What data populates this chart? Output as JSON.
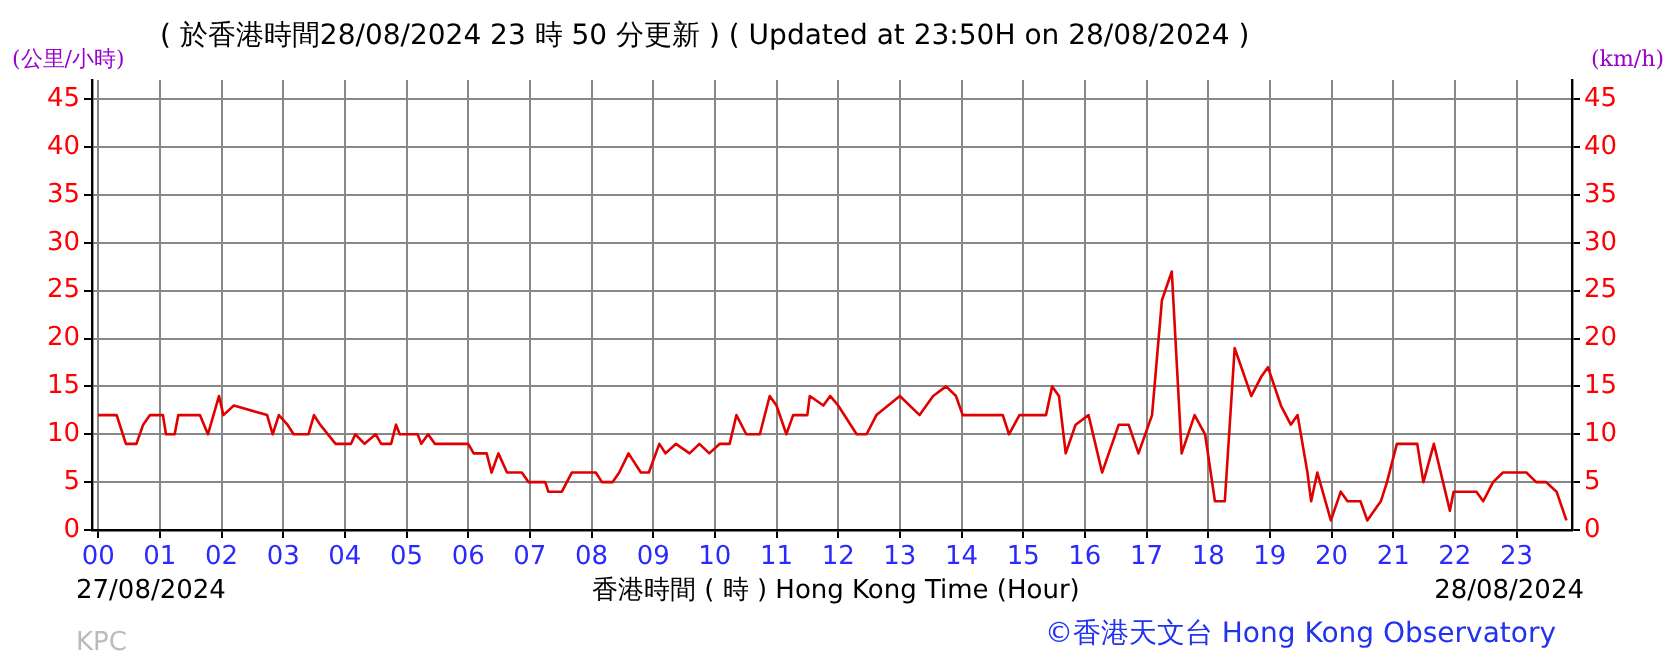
{
  "chart_data": {
    "type": "line",
    "title": "( 於香港時間28/08/2024 23 時 50 分更新 ) ( Updated at 23:50H on 28/08/2024 )",
    "xlabel": "香港時間 ( 時 )  Hong Kong Time (Hour)",
    "ylabel": "(公里/小時)",
    "y2label": "(km/h)",
    "annotations": [
      "27/08/2024",
      "28/08/2024",
      "KPC",
      "©香港天文台 Hong Kong Observatory"
    ],
    "x": [
      0,
      0.3,
      0.4,
      0.45,
      0.62,
      0.73,
      0.84,
      1.05,
      1.1,
      1.24,
      1.3,
      1.65,
      1.78,
      1.87,
      1.96,
      2.03,
      2.2,
      2.74,
      2.83,
      2.93,
      3.07,
      3.17,
      3.41,
      3.5,
      3.6,
      3.85,
      4.1,
      4.17,
      4.32,
      4.5,
      4.59,
      4.75,
      4.83,
      4.89,
      5.18,
      5.24,
      5.35,
      5.46,
      6.0,
      6.09,
      6.3,
      6.38,
      6.49,
      6.63,
      6.87,
      6.98,
      7.25,
      7.3,
      7.52,
      7.68,
      8.07,
      8.17,
      8.34,
      8.45,
      8.6,
      8.8,
      8.93,
      9.1,
      9.2,
      9.37,
      9.59,
      9.75,
      9.91,
      10.08,
      10.24,
      10.35,
      10.51,
      10.73,
      10.89,
      11.0,
      11.16,
      11.27,
      11.5,
      11.54,
      11.76,
      11.87,
      12.0,
      12.3,
      12.46,
      12.62,
      13.0,
      13.32,
      13.54,
      13.75,
      13.91,
      14.02,
      14.67,
      14.77,
      14.94,
      15.37,
      15.47,
      15.58,
      15.69,
      15.85,
      16.06,
      16.28,
      16.55,
      16.71,
      16.87,
      17.09,
      17.25,
      17.41,
      17.57,
      17.78,
      17.95,
      18.11,
      18.27,
      18.43,
      18.7,
      18.86,
      18.97,
      19.18,
      19.34,
      19.45,
      19.61,
      19.67,
      19.77,
      19.99,
      20.15,
      20.26,
      20.47,
      20.58,
      20.8,
      20.9,
      21.06,
      21.39,
      21.49,
      21.66,
      21.92,
      21.98,
      22.35,
      22.46,
      22.62,
      22.78,
      23.16,
      23.32,
      23.48,
      23.65,
      23.81
    ],
    "series": [
      {
        "color": "#e00000",
        "values": [
          12,
          12,
          10,
          9,
          9,
          11,
          12,
          12,
          10,
          10,
          12,
          12,
          10,
          12,
          14,
          12,
          13,
          12,
          10,
          12,
          11,
          10,
          10,
          12,
          11,
          9,
          9,
          10,
          9,
          10,
          9,
          9,
          11,
          10,
          10,
          9,
          10,
          9,
          9,
          8,
          8,
          6,
          8,
          6,
          6,
          5,
          5,
          4,
          4,
          6,
          6,
          5,
          5,
          6,
          8,
          6,
          6,
          9,
          8,
          9,
          8,
          9,
          8,
          9,
          9,
          12,
          10,
          10,
          14,
          13,
          10,
          12,
          12,
          14,
          13,
          14,
          13,
          10,
          10,
          12,
          14,
          12,
          14,
          15,
          14,
          12,
          12,
          10,
          12,
          12,
          15,
          14,
          8,
          11,
          12,
          6,
          11,
          11,
          8,
          12,
          24,
          27,
          8,
          12,
          10,
          3,
          3,
          19,
          14,
          16,
          17,
          13,
          11,
          12,
          6,
          3,
          6,
          1,
          4,
          3,
          3,
          1,
          3,
          5,
          9,
          9,
          5,
          9,
          2,
          4,
          4,
          3,
          5,
          6,
          6,
          5,
          5,
          4,
          1
        ]
      }
    ],
    "xlim": [
      -0.1,
      23.9
    ],
    "xticks": [
      {
        "value": 0,
        "label": "00"
      },
      {
        "value": 1,
        "label": "01"
      },
      {
        "value": 2,
        "label": "02"
      },
      {
        "value": 3,
        "label": "03"
      },
      {
        "value": 4,
        "label": "04"
      },
      {
        "value": 5,
        "label": "05"
      },
      {
        "value": 6,
        "label": "06"
      },
      {
        "value": 7,
        "label": "07"
      },
      {
        "value": 8,
        "label": "08"
      },
      {
        "value": 9,
        "label": "09"
      },
      {
        "value": 10,
        "label": "10"
      },
      {
        "value": 11,
        "label": "11"
      },
      {
        "value": 12,
        "label": "12"
      },
      {
        "value": 13,
        "label": "13"
      },
      {
        "value": 14,
        "label": "14"
      },
      {
        "value": 15,
        "label": "15"
      },
      {
        "value": 16,
        "label": "16"
      },
      {
        "value": 17,
        "label": "17"
      },
      {
        "value": 18,
        "label": "18"
      },
      {
        "value": 19,
        "label": "19"
      },
      {
        "value": 20,
        "label": "20"
      },
      {
        "value": 21,
        "label": "21"
      },
      {
        "value": 22,
        "label": "22"
      },
      {
        "value": 23,
        "label": "23"
      }
    ],
    "ylim": [
      0,
      47
    ],
    "yticks": [
      0,
      5,
      10,
      15,
      20,
      25,
      30,
      35,
      40,
      45
    ],
    "y2lim": [
      0,
      47
    ],
    "y2ticks": [
      0,
      5,
      10,
      15,
      20,
      25,
      30,
      35,
      40,
      45
    ],
    "grid": true,
    "marker": "none",
    "line_style": "solid"
  }
}
